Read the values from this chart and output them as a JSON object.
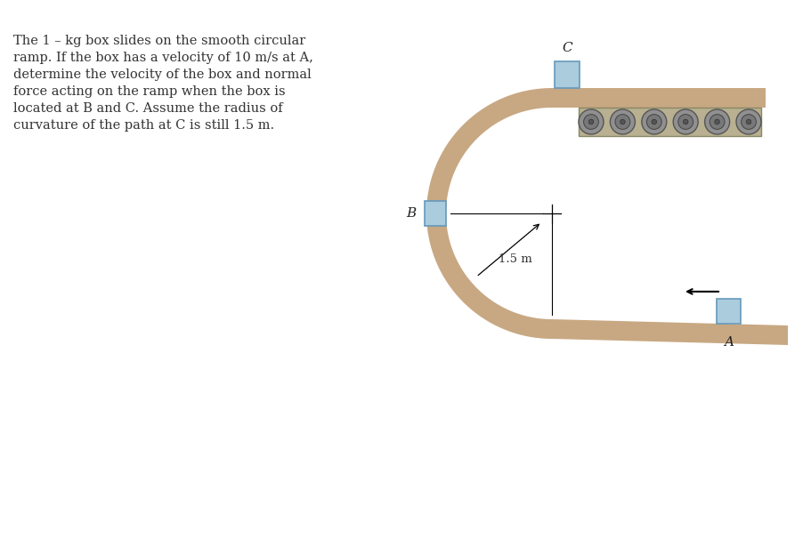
{
  "bg_color": "#ffffff",
  "ramp_color": "#c8a882",
  "box_color": "#aaccdd",
  "box_edge_color": "#6699bb",
  "roller_body_color": "#a0a0a0",
  "roller_inner_color": "#707070",
  "roller_border_color": "#888888",
  "roller_bar_color": "#c0b090",
  "roller_bar_edge": "#888877",
  "text_color": "#333333",
  "title_text": "The 1 – kg box slides on the smooth circular\nramp. If the box has a velocity of 10 m/s at A,\ndetermine the velocity of the box and normal\nforce acting on the ramp when the box is\nlocated at B and C. Assume the radius of\ncurvature of the path at C is still 1.5 m.",
  "label_A": "A",
  "label_B": "B",
  "label_C": "C",
  "dim_label": "1.5 m",
  "font_size_text": 10.5,
  "font_size_labels": 11
}
